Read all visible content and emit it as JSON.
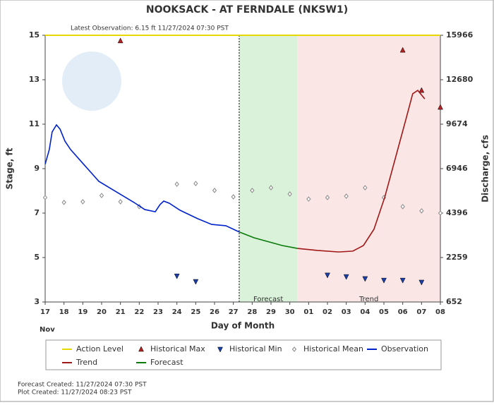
{
  "chart_data": {
    "type": "hydrograph",
    "title": "NOOKSACK - AT FERNDALE  (NKSW1)",
    "subtitle": "Latest Observation: 6.15 ft 11/27/2024 07:30 PST",
    "y_label": "Stage, ft",
    "y2_label": "Discharge, cfs",
    "x_label": "Day of Month",
    "x_sublabel": "Nov",
    "footer": [
      "Forecast Created: 11/27/2024 07:30 PST",
      "Plot Created: 11/27/2024 08:23 PST"
    ],
    "xlim": [
      0,
      21
    ],
    "xticks": [
      {
        "value": 0,
        "label": "17"
      },
      {
        "value": 1,
        "label": "18"
      },
      {
        "value": 2,
        "label": "19"
      },
      {
        "value": 3,
        "label": "20"
      },
      {
        "value": 4,
        "label": "21"
      },
      {
        "value": 5,
        "label": "22"
      },
      {
        "value": 6,
        "label": "23"
      },
      {
        "value": 7,
        "label": "24"
      },
      {
        "value": 8,
        "label": "25"
      },
      {
        "value": 9,
        "label": "26"
      },
      {
        "value": 10,
        "label": "27"
      },
      {
        "value": 11,
        "label": "28"
      },
      {
        "value": 12,
        "label": "29"
      },
      {
        "value": 13,
        "label": "30"
      },
      {
        "value": 14,
        "label": "01"
      },
      {
        "value": 15,
        "label": "02"
      },
      {
        "value": 16,
        "label": "03"
      },
      {
        "value": 17,
        "label": "04"
      },
      {
        "value": 18,
        "label": "05"
      },
      {
        "value": 19,
        "label": "06"
      },
      {
        "value": 20,
        "label": "07"
      },
      {
        "value": 21,
        "label": "08"
      }
    ],
    "ylim": [
      3,
      15
    ],
    "yticks": [
      3,
      5,
      7,
      9,
      11,
      13,
      15
    ],
    "y2ticks": [
      652,
      2259,
      4396,
      6946,
      9674,
      12680,
      15966
    ],
    "regions": [
      {
        "label": "Forecast",
        "start": 10.31,
        "end": 13.4,
        "color": "#d9f2d9"
      },
      {
        "label": "Trend",
        "start": 13.4,
        "end": 21,
        "color": "#fbe6e6"
      }
    ],
    "series": [
      {
        "name": "Action Level",
        "color": "#e6d800",
        "style": "line",
        "x": [
          0,
          21
        ],
        "values": [
          15,
          15
        ]
      },
      {
        "name": "Historical Max",
        "color": "#b22222",
        "style": "triangle-up",
        "x": [
          4,
          19,
          20,
          21
        ],
        "values": [
          14.75,
          14.33,
          12.52,
          11.76
        ]
      },
      {
        "name": "Historical Min",
        "color": "#1a3ea8",
        "style": "triangle-down",
        "x": [
          7,
          8,
          15,
          16,
          17,
          18,
          19,
          20
        ],
        "values": [
          4.17,
          3.92,
          4.21,
          4.14,
          4.05,
          3.98,
          3.98,
          3.89
        ]
      },
      {
        "name": "Historical Mean",
        "color": "#888888",
        "style": "diamond",
        "x": [
          0,
          1,
          2,
          3,
          4,
          5,
          7,
          8,
          9,
          10,
          11,
          12,
          13,
          14,
          15,
          16,
          17,
          18,
          19,
          20,
          21
        ],
        "values": [
          7.7,
          7.48,
          7.51,
          7.79,
          7.51,
          7.29,
          8.3,
          8.33,
          8.02,
          7.73,
          8.02,
          8.14,
          7.86,
          7.63,
          7.7,
          7.76,
          8.14,
          7.7,
          7.29,
          7.1,
          7.0
        ]
      },
      {
        "name": "Observation",
        "color": "#0022cc",
        "style": "line",
        "x": [
          0,
          0.22,
          0.37,
          0.6,
          0.79,
          1.05,
          1.35,
          2.02,
          2.85,
          3.79,
          4.72,
          5.29,
          5.85,
          6.1,
          6.3,
          6.6,
          7.16,
          8.1,
          8.85,
          9.6,
          10.31
        ],
        "values": [
          9.2,
          9.86,
          10.65,
          10.97,
          10.78,
          10.24,
          9.86,
          9.22,
          8.43,
          7.95,
          7.48,
          7.16,
          7.06,
          7.38,
          7.54,
          7.44,
          7.13,
          6.75,
          6.49,
          6.43,
          6.15
        ]
      },
      {
        "name": "Trend",
        "color": "#a01818",
        "style": "line",
        "x": [
          13.4,
          14.47,
          15.6,
          16.35,
          16.91,
          17.47,
          18.04,
          18.6,
          19.16,
          19.53,
          19.8,
          20.17
        ],
        "values": [
          5.41,
          5.32,
          5.25,
          5.29,
          5.54,
          6.27,
          7.7,
          9.44,
          11.19,
          12.37,
          12.52,
          12.14
        ]
      },
      {
        "name": "Forecast",
        "color": "#0a7a0a",
        "style": "line",
        "x": [
          10.31,
          11.1,
          12.04,
          12.6,
          13.4
        ],
        "values": [
          6.15,
          5.89,
          5.67,
          5.54,
          5.41
        ]
      }
    ]
  }
}
